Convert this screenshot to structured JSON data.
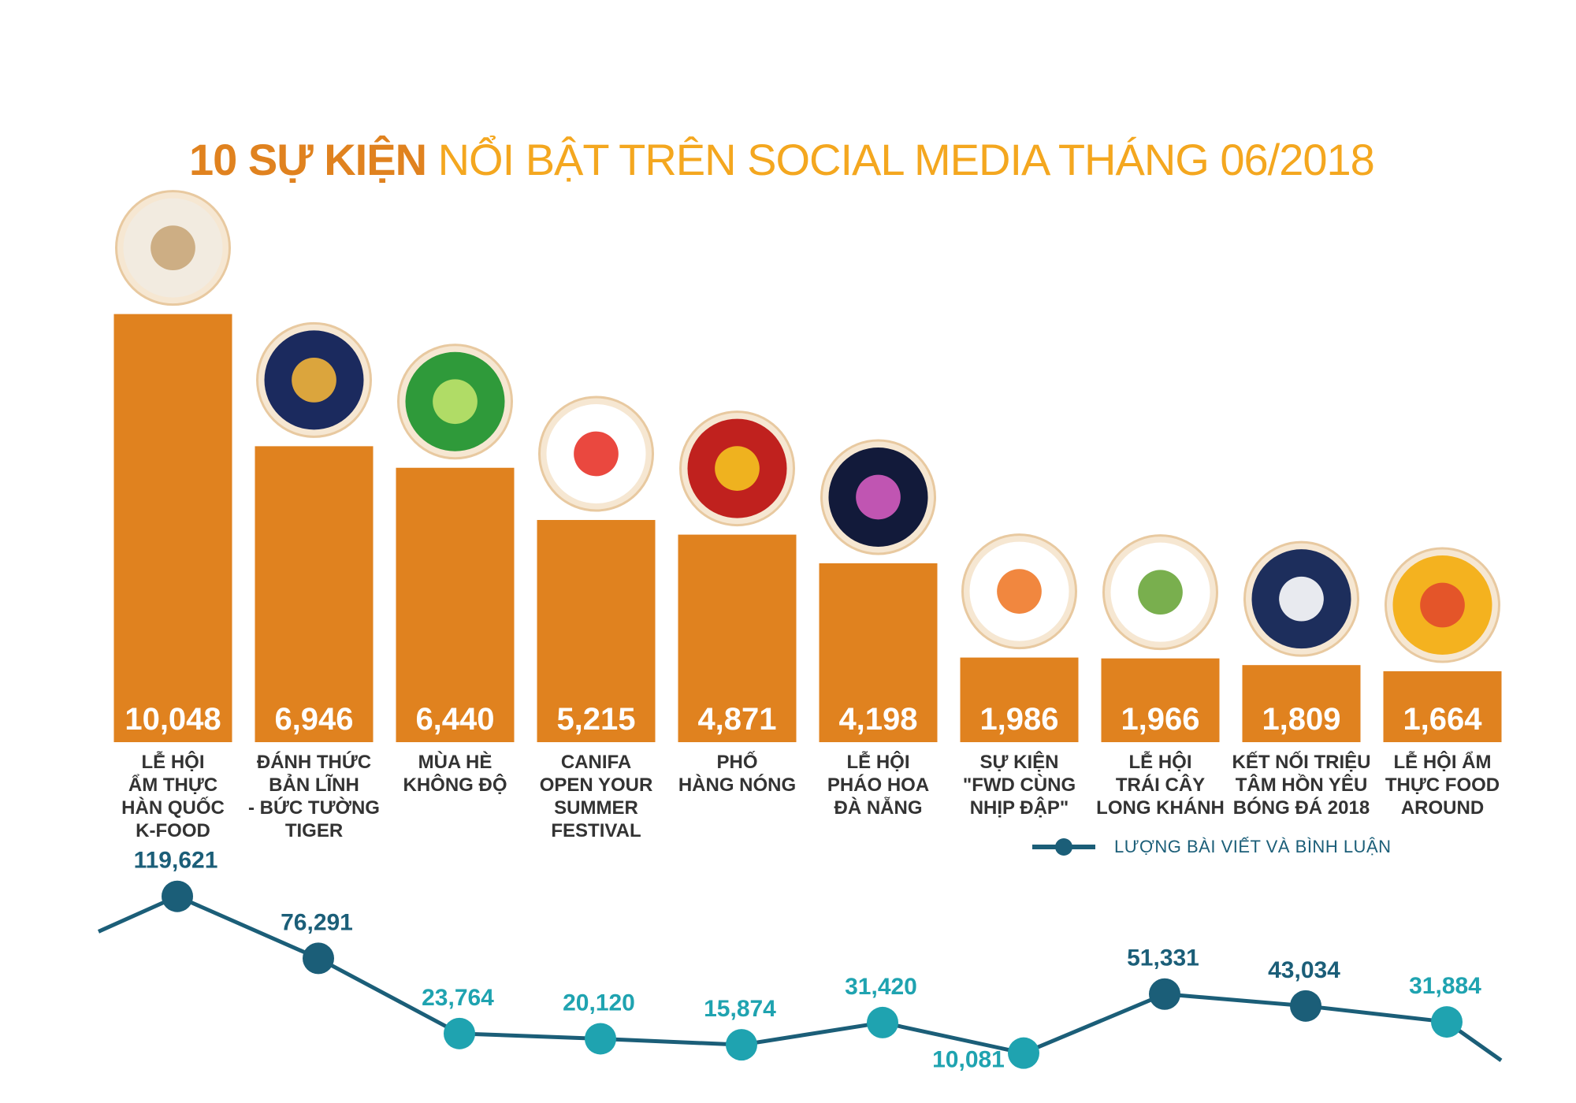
{
  "title": {
    "part1": "10 SỰ KIỆN",
    "part2": " NỔI BẬT TRÊN SOCIAL MEDIA THÁNG 06/2018"
  },
  "legend": {
    "label": "LƯỢNG BÀI VIẾT VÀ BÌNH LUẬN"
  },
  "colors": {
    "bar": "#e0821f",
    "line": "#1b5e78",
    "dot_dark": "#1b5e78",
    "dot_light": "#1fa3b0",
    "title_dark": "#e0821f",
    "title_light": "#f4a71f"
  },
  "icons": [
    "kfood-poster-icon",
    "tiger-icon",
    "mua-he-khong-do-icon",
    "open-your-summer-festival-icon",
    "pho-hang-nong-icon",
    "fireworks-icon",
    "headphones-heart-icon",
    "trai-cay-icon",
    "soccer-ball-icon",
    "food-around-icon"
  ],
  "chart_data": [
    {
      "type": "bar",
      "categories": [
        [
          "LỄ HỘI",
          "ẨM THỰC",
          "HÀN QUỐC",
          "K-FOOD"
        ],
        [
          "ĐÁNH THỨC",
          "BẢN LĨNH",
          "- BỨC TƯỜNG",
          "TIGER"
        ],
        [
          "MÙA HÈ",
          "KHÔNG ĐỘ"
        ],
        [
          "CANIFA",
          "OPEN YOUR",
          "SUMMER",
          "FESTIVAL"
        ],
        [
          "PHỐ",
          "HÀNG NÓNG"
        ],
        [
          "LỄ HỘI",
          "PHÁO HOA",
          "ĐÀ NẴNG"
        ],
        [
          "SỰ KIỆN",
          "\"FWD CÙNG",
          "NHỊP ĐẬP\""
        ],
        [
          "LỄ HỘI",
          "TRÁI CÂY",
          "LONG KHÁNH"
        ],
        [
          "KẾT NỐI TRIỆU",
          "TÂM HỒN YÊU",
          "BÓNG ĐÁ 2018"
        ],
        [
          "LỄ HỘI ẨM",
          "THỰC FOOD",
          "AROUND"
        ]
      ],
      "values": [
        10048,
        6946,
        6440,
        5215,
        4871,
        4198,
        1986,
        1966,
        1809,
        1664
      ],
      "value_labels": [
        "10,048",
        "6,946",
        "6,440",
        "5,215",
        "4,871",
        "4,198",
        "1,986",
        "1,966",
        "1,809",
        "1,664"
      ],
      "title": "10 SỰ KIỆN NỔI BẬT TRÊN SOCIAL MEDIA THÁNG 06/2018",
      "xlabel": "",
      "ylabel": "",
      "ylim": [
        0,
        10300
      ],
      "grid": false
    },
    {
      "type": "line",
      "series": [
        {
          "name": "LƯỢNG BÀI VIẾT VÀ BÌNH LUẬN",
          "values": [
            119621,
            76291,
            23764,
            20120,
            15874,
            31420,
            10081,
            51331,
            43034,
            31884
          ],
          "value_labels": [
            "119,621",
            "76,291",
            "23,764",
            "20,120",
            "15,874",
            "31,420",
            "10,081",
            "51,331",
            "43,034",
            "31,884"
          ],
          "label_side": [
            "above",
            "above",
            "above",
            "above",
            "above",
            "above",
            "below",
            "above",
            "above",
            "above"
          ],
          "dot_tone": [
            "dark",
            "dark",
            "light",
            "light",
            "light",
            "light",
            "light",
            "dark",
            "dark",
            "light"
          ]
        }
      ],
      "legend": "top-right",
      "grid": false
    }
  ]
}
